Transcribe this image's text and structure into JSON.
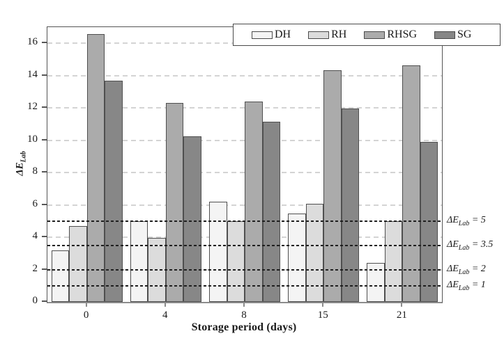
{
  "chart_data": {
    "type": "bar",
    "title": "",
    "xlabel": "Storage period (days)",
    "ylabel": "ΔE_Lab",
    "ylabel_prefix": "ΔE",
    "ylabel_sub": "Lab",
    "categories": [
      "0",
      "4",
      "8",
      "15",
      "21"
    ],
    "series": [
      {
        "name": "DH",
        "color": "#f4f4f4",
        "values": [
          3.2,
          5.0,
          6.2,
          5.45,
          2.4
        ]
      },
      {
        "name": "RH",
        "color": "#dcdcdc",
        "values": [
          4.7,
          3.95,
          5.0,
          6.05,
          5.0
        ]
      },
      {
        "name": "RHSG",
        "color": "#ababab",
        "values": [
          16.55,
          12.3,
          12.4,
          14.35,
          14.65
        ]
      },
      {
        "name": "SG",
        "color": "#878787",
        "values": [
          13.7,
          10.25,
          11.15,
          11.95,
          9.9
        ]
      }
    ],
    "ylim": [
      0,
      17
    ],
    "yticks": [
      0,
      2,
      4,
      6,
      8,
      10,
      12,
      14,
      16
    ],
    "grid_values": [
      2,
      4,
      6,
      8,
      10,
      12,
      14,
      16
    ],
    "grid_color": "#d4d4d4",
    "reference_line_color": "#1f1f1f",
    "bar_border_color": "#4f4f4f",
    "reference_lines": [
      {
        "value": 5,
        "prefix": "ΔE",
        "sub": "Lab",
        "eq": "= 5"
      },
      {
        "value": 3.5,
        "prefix": "ΔE",
        "sub": "Lab",
        "eq": "= 3.5"
      },
      {
        "value": 2,
        "prefix": "ΔE",
        "sub": "Lab",
        "eq": "= 2"
      },
      {
        "value": 1,
        "prefix": "ΔE",
        "sub": "Lab",
        "eq": "= 1"
      }
    ],
    "legend_position": "top-right",
    "grid": true
  }
}
